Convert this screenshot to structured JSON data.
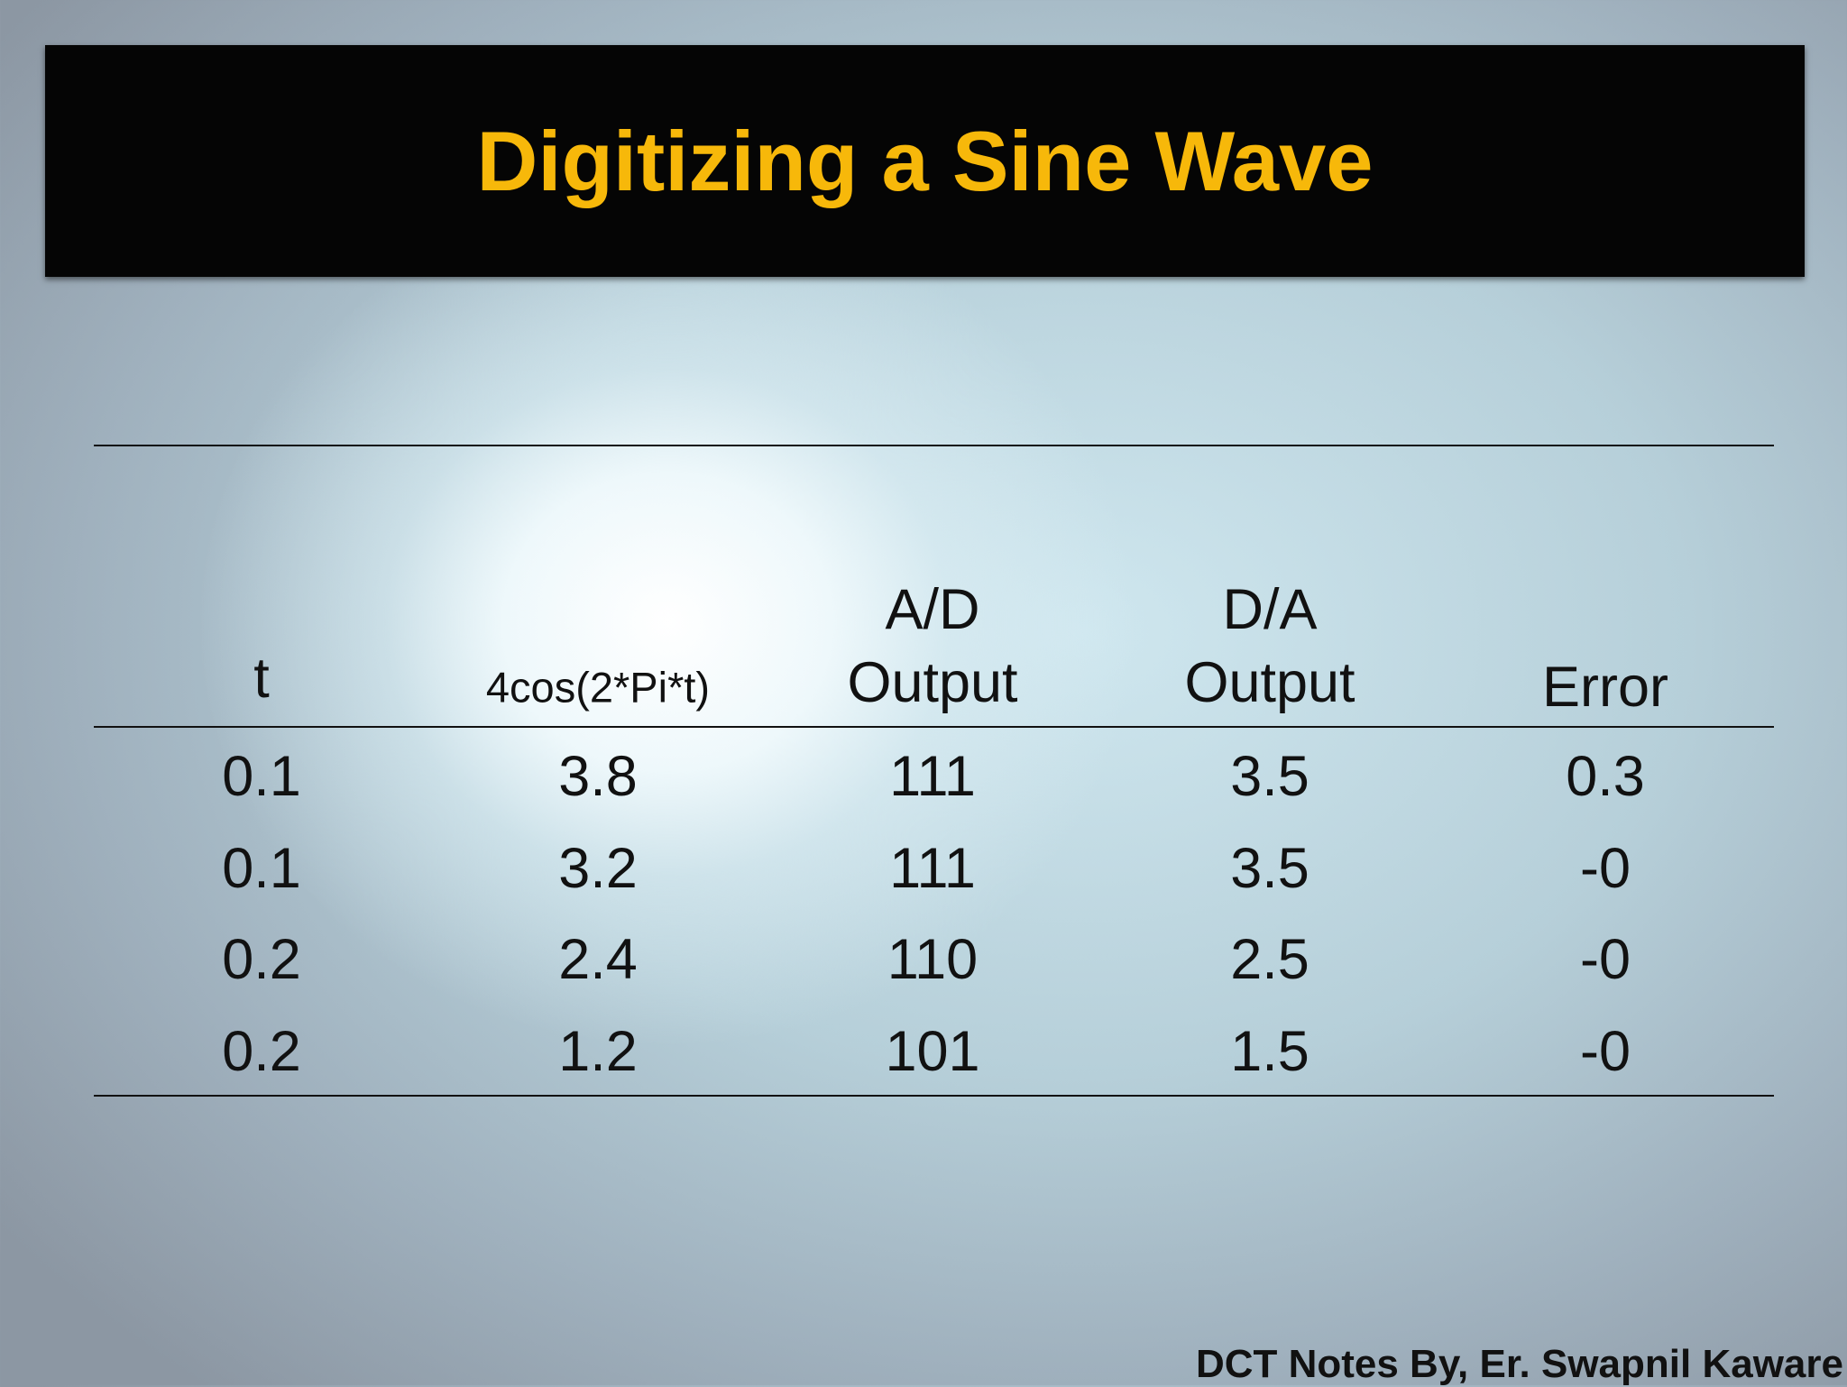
{
  "header": {
    "title": "Digitizing a Sine Wave"
  },
  "table": {
    "columns": [
      [
        "t"
      ],
      [
        "4cos(2*Pi*t)"
      ],
      [
        "A/D",
        "Output"
      ],
      [
        "D/A",
        "Output"
      ],
      [
        "Error"
      ]
    ],
    "rows": [
      [
        "0.1",
        "3.8",
        "111",
        "3.5",
        "0.3"
      ],
      [
        "0.1",
        "3.2",
        "111",
        "3.5",
        "-0"
      ],
      [
        "0.2",
        "2.4",
        "110",
        "2.5",
        "-0"
      ],
      [
        "0.2",
        "1.2",
        "101",
        "1.5",
        "-0"
      ]
    ]
  },
  "footer": {
    "credit": "DCT Notes By, Er. Swapnil Kaware"
  }
}
